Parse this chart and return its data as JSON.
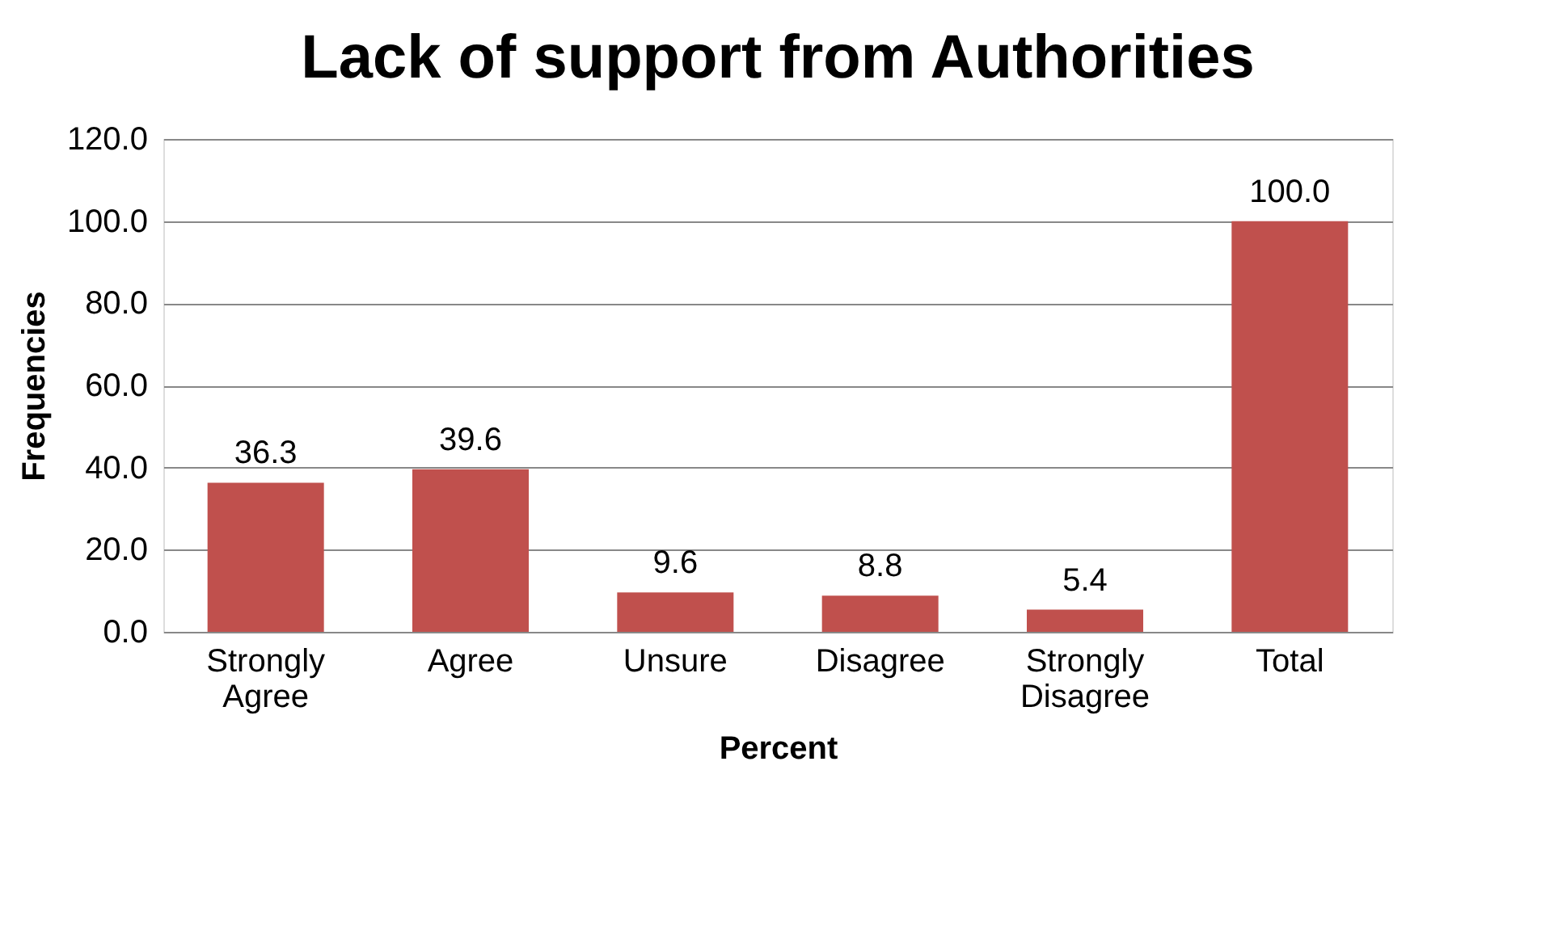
{
  "chart_data": {
    "type": "bar",
    "title": "Lack of support from Authorities",
    "xlabel": "Percent",
    "ylabel": "Frequencies",
    "categories": [
      "Strongly Agree",
      "Agree",
      "Unsure",
      "Disagree",
      "Strongly Disagree",
      "Total"
    ],
    "values": [
      36.3,
      39.6,
      9.6,
      8.8,
      5.4,
      100.0
    ],
    "color": "#c0504d",
    "ylim": [
      0,
      120
    ],
    "yticks": [
      {
        "value": 0,
        "label": "0.0"
      },
      {
        "value": 20,
        "label": "20.0"
      },
      {
        "value": 40,
        "label": "40.0"
      },
      {
        "value": 60,
        "label": "60.0"
      },
      {
        "value": 80,
        "label": "80.0"
      },
      {
        "value": 100,
        "label": "100.0"
      },
      {
        "value": 120,
        "label": "120.0"
      }
    ],
    "value_labels": [
      "36.3",
      "39.6",
      "9.6",
      "8.8",
      "5.4",
      "100.0"
    ],
    "grid": "y"
  }
}
